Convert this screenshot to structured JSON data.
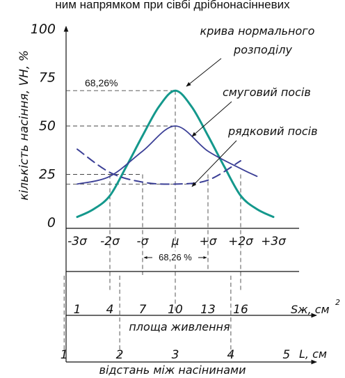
{
  "caption": "ним напрямком при сівбі дрібнонасінневих",
  "chart_data": {
    "type": "line",
    "ylabel": "кількість насіння, VН, %",
    "y_ticks": [
      "100",
      "75",
      "50",
      "25",
      "0"
    ],
    "y_tick_values": [
      100,
      75,
      50,
      25,
      0
    ],
    "ylim": [
      0,
      100
    ],
    "sigma_labels": [
      "-3σ",
      "-2σ",
      "-σ",
      "μ",
      "+σ",
      "+2σ",
      "+3σ"
    ],
    "sigma_values": [
      -3,
      -2,
      -1,
      0,
      1,
      2,
      3
    ],
    "xlim_sigma": [
      -3.5,
      3.8
    ],
    "band_label": "68,26 %",
    "peak_label": "68,26%",
    "peak_value": 68.26,
    "area": {
      "ticks": [
        "1",
        "4",
        "7",
        "10",
        "13",
        "16"
      ],
      "tick_sigma": [
        -3,
        -2,
        -1,
        0,
        1,
        2
      ],
      "unit_label": "Sж, см",
      "unit_power": "2",
      "xlabel": "площа живлення"
    },
    "distance": {
      "ticks": [
        "1",
        "2",
        "3",
        "4",
        "5"
      ],
      "tick_sigma": [
        -3.4,
        -1.7,
        0,
        1.7,
        3.4
      ],
      "unit_label": "L, см",
      "xlabel": "відстань між насінинами"
    },
    "series": [
      {
        "name": "крива нормального розподілу",
        "color": "#14988c",
        "x": [
          -3.0,
          -2.5,
          -2.0,
          -1.5,
          -1.0,
          -0.5,
          0.0,
          0.5,
          1.0,
          1.5,
          2.0,
          2.5,
          3.0
        ],
        "y": [
          3,
          7,
          14,
          29,
          45,
          60,
          68.26,
          60,
          45,
          29,
          14,
          7,
          3
        ]
      },
      {
        "name": "смуговий посів",
        "color": "#3b3f96",
        "x": [
          -3.0,
          -2.0,
          -1.0,
          0.0,
          1.0,
          2.0,
          2.5
        ],
        "y": [
          20,
          24,
          37,
          50,
          37,
          28,
          24
        ]
      },
      {
        "name": "рядковий посів",
        "color": "#3b3f96",
        "x": [
          -3.0,
          -2.0,
          -1.0,
          0.0,
          1.0,
          2.0
        ],
        "y": [
          38,
          26,
          21,
          20,
          22,
          32
        ]
      }
    ]
  }
}
